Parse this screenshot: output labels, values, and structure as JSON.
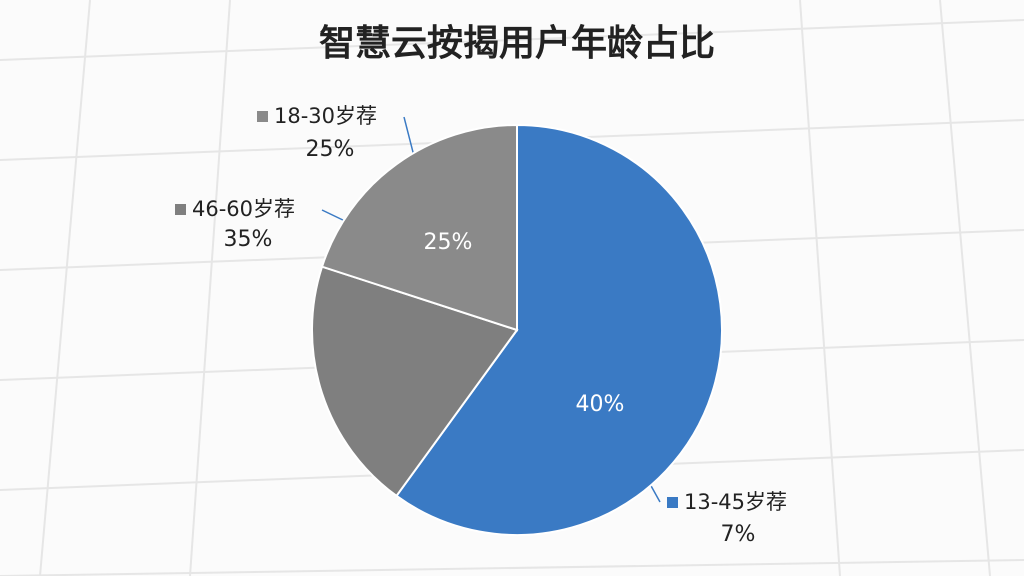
{
  "chart_data": {
    "type": "pie",
    "title": "智慧云按揭用户年龄占比",
    "categories": [
      "13-45岁荐",
      "46-60岁荐",
      "18-30岁荐"
    ],
    "values": [
      60,
      20,
      20
    ],
    "colors": [
      "#3a7ac4",
      "#7f7f7f",
      "#8a8a8a"
    ],
    "annotations": [
      "25%",
      "40%",
      "25%",
      "35%",
      "7%"
    ]
  }
}
